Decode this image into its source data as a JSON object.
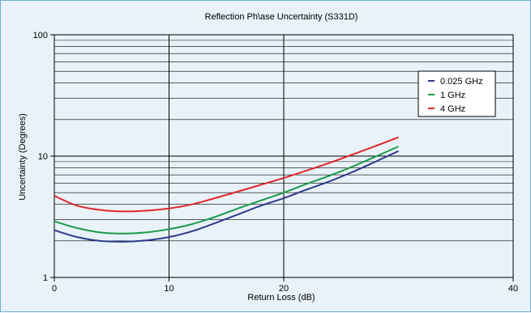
{
  "chart_data": {
    "type": "line",
    "title": "Reflection Ph\\ase Uncertainty (S331D)",
    "xlabel": "Return Loss (dB)",
    "ylabel": "Uncertainty (Degrees)",
    "xlim": [
      0,
      40
    ],
    "ylim": [
      1,
      100
    ],
    "y_scale": "log",
    "x_ticks": [
      "0",
      "10",
      "20",
      "40"
    ],
    "y_ticks": [
      "1",
      "10",
      "100"
    ],
    "grid": true,
    "legend_position": "top-right",
    "x": [
      0,
      2,
      4,
      6,
      8,
      10,
      12,
      14,
      16,
      18,
      20,
      22,
      24,
      26,
      28,
      30
    ],
    "series": [
      {
        "name": "0.025 GHz",
        "color": "#2e3a8c",
        "values": [
          2.45,
          2.15,
          2.0,
          1.97,
          2.02,
          2.15,
          2.4,
          2.8,
          3.3,
          3.9,
          4.5,
          5.3,
          6.2,
          7.4,
          9.0,
          11.0
        ]
      },
      {
        "name": "1 GHz",
        "color": "#1a9a4a",
        "values": [
          2.9,
          2.55,
          2.35,
          2.3,
          2.35,
          2.5,
          2.75,
          3.15,
          3.7,
          4.3,
          5.0,
          5.9,
          6.9,
          8.2,
          9.9,
          12.0
        ]
      },
      {
        "name": "4 GHz",
        "color": "#e0262b",
        "values": [
          4.7,
          3.9,
          3.6,
          3.5,
          3.55,
          3.7,
          4.0,
          4.5,
          5.1,
          5.8,
          6.6,
          7.6,
          8.8,
          10.3,
          12.1,
          14.3
        ]
      }
    ]
  }
}
